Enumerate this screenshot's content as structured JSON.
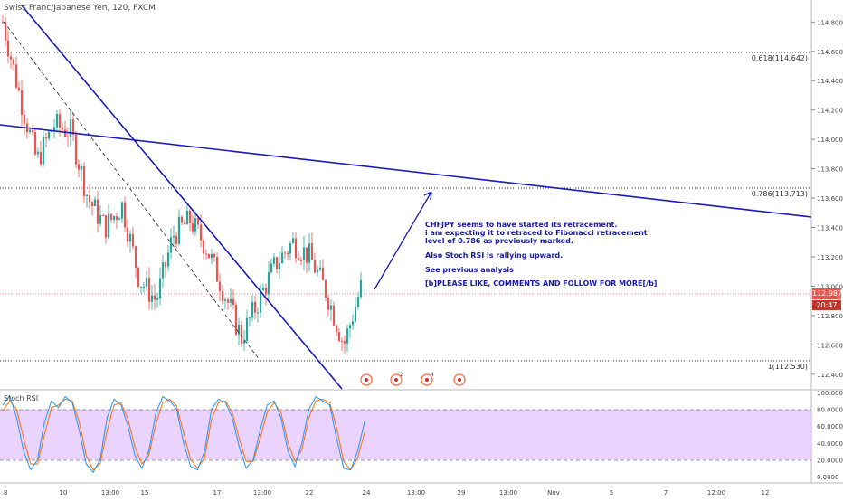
{
  "header": {
    "symbol": "Swiss Franc/Japanese Yen, 120, FXCM"
  },
  "price_axis": {
    "ticks": [
      "114.800",
      "114.600",
      "114.400",
      "114.200",
      "114.000",
      "113.800",
      "113.600",
      "113.400",
      "113.200",
      "113.000",
      "112.800",
      "112.600",
      "112.400"
    ],
    "current_price": "112.987",
    "countdown": "20:47"
  },
  "oscillator_axis": {
    "ticks": [
      "100.0000",
      "80.0000",
      "60.0000",
      "40.0000",
      "20.0000",
      "0.0000"
    ]
  },
  "time_axis": {
    "ticks": [
      "8",
      "10",
      "13:00",
      "15",
      "17",
      "13:00",
      "22",
      "24",
      "13:00",
      "29",
      "13:00",
      "Nov",
      "5",
      "7",
      "12:00",
      "12"
    ]
  },
  "fib_levels": [
    {
      "label": "0.618(114.642)",
      "price": 114.642
    },
    {
      "label": "0.786(113.713)",
      "price": 113.713
    },
    {
      "label": "1(112.530)",
      "price": 112.53
    }
  ],
  "annotation": {
    "line1": "CHFJPY seems to have started its retracement.",
    "line2": "i am expecting it to retraced to Fibonacci retracement",
    "line3": "level of 0.786 as previously marked.",
    "line4": "Also Stoch RSI is rallying upward.",
    "line5": "See previous analysis",
    "line6": "[b]PLEASE LIKE, COMMENTS AND FOLLOW FOR MORE[/b]"
  },
  "oscillator": {
    "name": "Stoch RSI",
    "levels": [
      80,
      20
    ]
  },
  "event_markers": [
    {
      "label": ""
    },
    {
      "label": "2"
    },
    {
      "label": "4"
    },
    {
      "label": ""
    }
  ],
  "colors": {
    "up_candle": "#26a69a",
    "down_candle": "#ef5350",
    "trendline": "#1a1ab8",
    "price_tag": "#ef5350",
    "countdown_tag": "#c0392b",
    "stoch_band": "#e6ccff",
    "k_line": "#2196f3",
    "d_line": "#ff6d00",
    "marker": "#ff7043"
  },
  "chart_data": {
    "type": "candlestick",
    "title": "Swiss Franc/Japanese Yen, 120, FXCM",
    "ylim": [
      112.3,
      114.95
    ],
    "annotations": [
      "CHFJPY seems to have started its retracement."
    ],
    "price_path": [
      {
        "t": "8",
        "close": 114.8
      },
      {
        "t": "8",
        "close": 114.3
      },
      {
        "t": "9",
        "close": 113.85
      },
      {
        "t": "10",
        "close": 114.1
      },
      {
        "t": "10",
        "close": 114.05
      },
      {
        "t": "13:00",
        "close": 113.6
      },
      {
        "t": "13:00",
        "close": 113.4
      },
      {
        "t": "15",
        "close": 113.55
      },
      {
        "t": "15",
        "close": 113.05
      },
      {
        "t": "16",
        "close": 112.9
      },
      {
        "t": "16",
        "close": 113.35
      },
      {
        "t": "17",
        "close": 113.45
      },
      {
        "t": "17",
        "close": 113.25
      },
      {
        "t": "13:00",
        "close": 112.95
      },
      {
        "t": "13:00",
        "close": 112.65
      },
      {
        "t": "20",
        "close": 112.9
      },
      {
        "t": "21",
        "close": 113.15
      },
      {
        "t": "22",
        "close": 113.3
      },
      {
        "t": "22",
        "close": 113.2
      },
      {
        "t": "23",
        "close": 112.95
      },
      {
        "t": "23",
        "close": 112.6
      },
      {
        "t": "23",
        "close": 112.99
      }
    ],
    "horizontal_levels": [
      114.642,
      113.713,
      112.53
    ],
    "current_price": 112.987,
    "oscillator": {
      "name": "Stoch RSI",
      "ylim": [
        0,
        100
      ],
      "bands": [
        80,
        20
      ],
      "k": [
        85,
        96,
        70,
        30,
        8,
        20,
        65,
        90,
        82,
        95,
        88,
        55,
        15,
        5,
        20,
        70,
        92,
        85,
        60,
        25,
        10,
        30,
        75,
        95,
        90,
        80,
        40,
        12,
        8,
        30,
        80,
        92,
        88,
        70,
        35,
        10,
        20,
        55,
        85,
        90,
        70,
        30,
        12,
        40,
        80,
        95,
        90,
        85,
        45,
        10,
        8,
        30,
        65
      ],
      "d": [
        78,
        90,
        80,
        45,
        15,
        15,
        50,
        82,
        85,
        92,
        90,
        65,
        25,
        8,
        15,
        55,
        85,
        88,
        68,
        35,
        15,
        25,
        62,
        88,
        92,
        84,
        52,
        20,
        10,
        22,
        68,
        88,
        90,
        76,
        45,
        18,
        18,
        45,
        76,
        88,
        76,
        40,
        18,
        32,
        70,
        90,
        92,
        88,
        58,
        18,
        8,
        22,
        52
      ]
    }
  }
}
